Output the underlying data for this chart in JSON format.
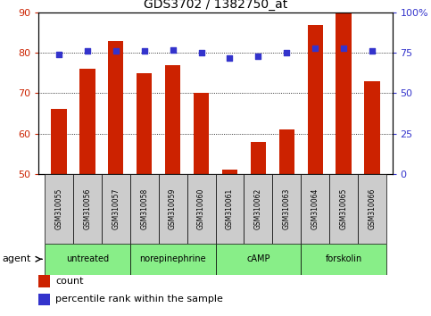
{
  "title": "GDS3702 / 1382750_at",
  "samples": [
    "GSM310055",
    "GSM310056",
    "GSM310057",
    "GSM310058",
    "GSM310059",
    "GSM310060",
    "GSM310061",
    "GSM310062",
    "GSM310063",
    "GSM310064",
    "GSM310065",
    "GSM310066"
  ],
  "counts": [
    66,
    76,
    83,
    75,
    77,
    70,
    51,
    58,
    61,
    87,
    90,
    73
  ],
  "percentiles": [
    74,
    76,
    76,
    76,
    77,
    75,
    72,
    73,
    75,
    78,
    78,
    76
  ],
  "agents": [
    {
      "label": "untreated",
      "start": 0,
      "end": 3
    },
    {
      "label": "norepinephrine",
      "start": 3,
      "end": 6
    },
    {
      "label": "cAMP",
      "start": 6,
      "end": 9
    },
    {
      "label": "forskolin",
      "start": 9,
      "end": 12
    }
  ],
  "ylim_left": [
    50,
    90
  ],
  "yticks_left": [
    50,
    60,
    70,
    80,
    90
  ],
  "ylim_right": [
    0,
    100
  ],
  "yticks_right": [
    0,
    25,
    50,
    75,
    100
  ],
  "bar_color": "#cc2200",
  "dot_color": "#3333cc",
  "bar_width": 0.55,
  "grid_color": "#000000",
  "agent_bg_color": "#88ee88",
  "sample_bg_color": "#cccccc",
  "legend_count_label": "count",
  "legend_pct_label": "percentile rank within the sample",
  "left_tick_color": "#cc2200",
  "right_tick_color": "#3333cc",
  "title_fontsize": 10,
  "tick_labelsize": 8
}
